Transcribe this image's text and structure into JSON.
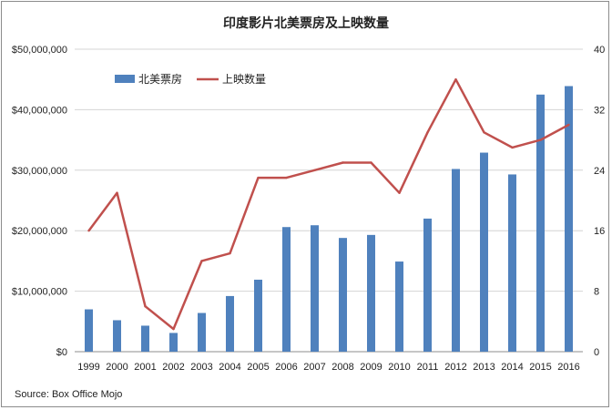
{
  "chart_data": {
    "type": "bar",
    "title": "印度影片北美票房及上映数量",
    "categories": [
      "1999",
      "2000",
      "2001",
      "2002",
      "2003",
      "2004",
      "2005",
      "2006",
      "2007",
      "2008",
      "2009",
      "2010",
      "2011",
      "2012",
      "2013",
      "2014",
      "2015",
      "2016"
    ],
    "series": [
      {
        "name": "北美票房",
        "type": "bar",
        "axis": "left",
        "color": "#4f81bd",
        "values": [
          7000000,
          5200000,
          4300000,
          3100000,
          6400000,
          9200000,
          11900000,
          20600000,
          20900000,
          18800000,
          19300000,
          14900000,
          22000000,
          30200000,
          32900000,
          29300000,
          42500000,
          43900000
        ]
      },
      {
        "name": "上映数量",
        "type": "line",
        "axis": "right",
        "color": "#c0504d",
        "values": [
          16,
          21,
          6,
          3,
          12,
          13,
          23,
          23,
          24,
          25,
          25,
          21,
          29,
          36,
          29,
          27,
          28,
          30
        ]
      }
    ],
    "y_left": {
      "range": [
        0,
        50000000
      ],
      "ticks": [
        "$0",
        "$10,000,000",
        "$20,000,000",
        "$30,000,000",
        "$40,000,000",
        "$50,000,000"
      ]
    },
    "y_right": {
      "range": [
        0,
        40
      ],
      "ticks": [
        "0",
        "8",
        "16",
        "24",
        "32",
        "40"
      ]
    },
    "grid": true,
    "legend_position": "top-left"
  },
  "source_text": "Source: Box Office Mojo"
}
